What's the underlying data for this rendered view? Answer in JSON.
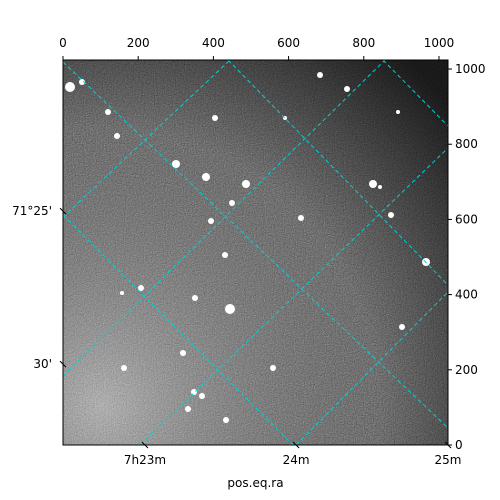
{
  "chart_data": {
    "type": "image",
    "xlabel": "pos.eq.ra",
    "xlim": [
      0,
      1024
    ],
    "ylim": [
      0,
      1024
    ],
    "xticks": [
      0,
      200,
      400,
      600,
      800,
      1000
    ],
    "yticks": [
      0,
      200,
      400,
      600,
      800,
      1000
    ],
    "ra_ticks": [
      {
        "value": 218,
        "label": "7h23m"
      },
      {
        "value": 620,
        "label": "24m"
      },
      {
        "value": 1024,
        "label": "25m"
      }
    ],
    "dec_ticks": [
      {
        "value": 622,
        "label": "71°25'"
      },
      {
        "value": 215,
        "label": "30'"
      }
    ],
    "grid_color": "#00d0d0"
  }
}
